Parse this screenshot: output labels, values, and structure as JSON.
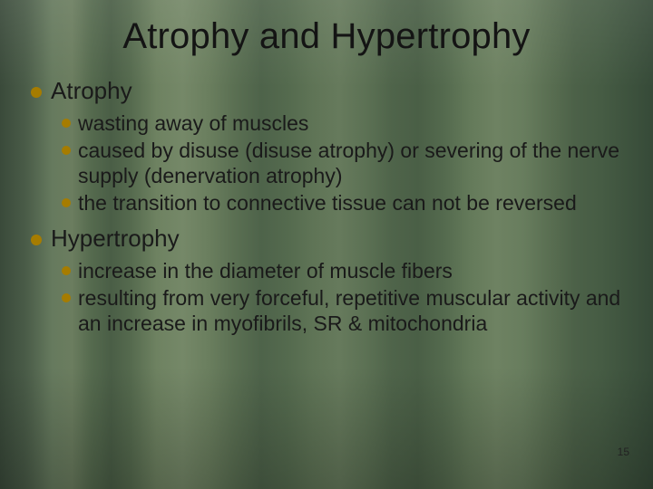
{
  "title": "Atrophy and Hypertrophy",
  "page_number": "15",
  "colors": {
    "bullet": "#a67c00",
    "text": "#1a1a1a",
    "title": "#141414"
  },
  "typography": {
    "title_fontsize_pt": 30,
    "l1_fontsize_pt": 20,
    "l2_fontsize_pt": 17,
    "body_font": "Verdana",
    "title_font": "Segoe UI"
  },
  "sections": [
    {
      "heading": "Atrophy",
      "items": [
        "wasting away of muscles",
        "caused by disuse (disuse atrophy) or severing of the nerve supply (denervation atrophy)",
        "the transition to connective tissue can not be reversed"
      ]
    },
    {
      "heading": "Hypertrophy",
      "items": [
        "increase in the diameter of muscle fibers",
        "resulting from very forceful, repetitive muscular activity and an increase in myofibrils, SR & mitochondria"
      ]
    }
  ]
}
